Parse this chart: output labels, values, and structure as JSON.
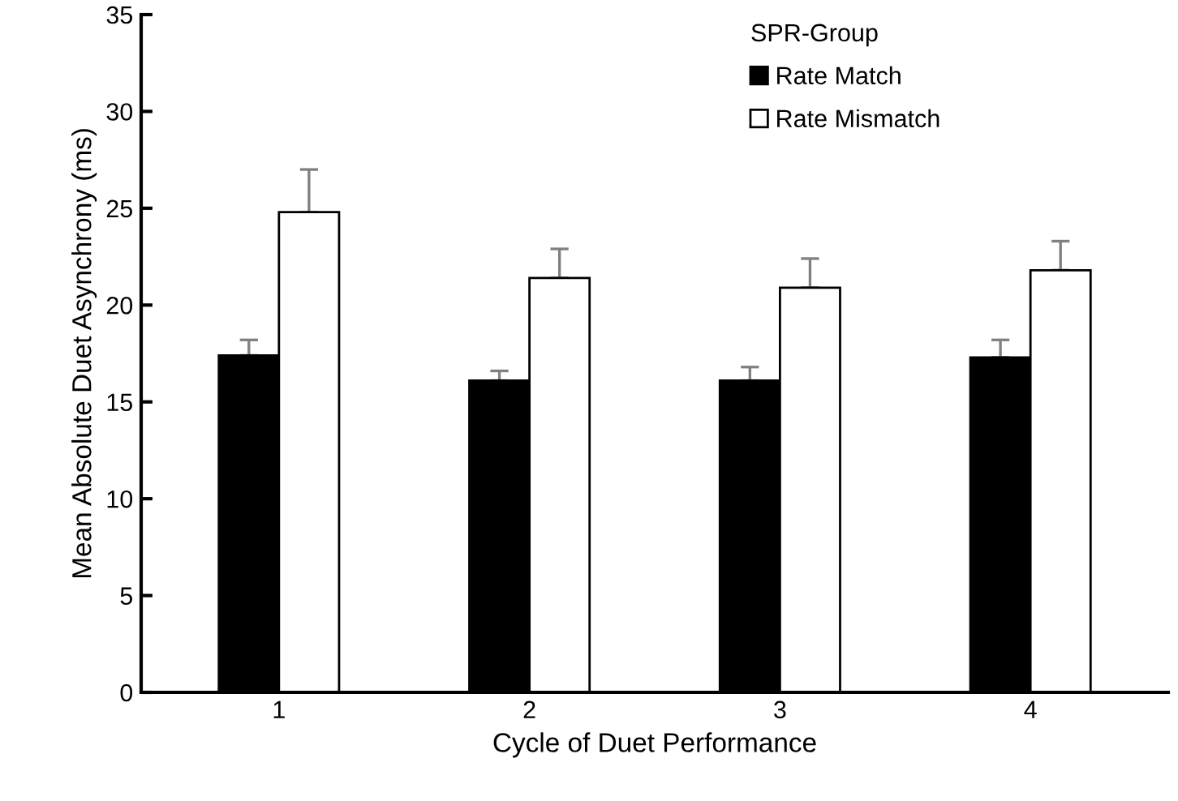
{
  "chart_data": {
    "type": "bar",
    "xlabel": "Cycle of Duet Performance",
    "ylabel": "Mean Absolute Duet Asynchrony (ms)",
    "legend_title": "SPR-Group",
    "legend": "top right",
    "grid": false,
    "categories": [
      "1",
      "2",
      "3",
      "4"
    ],
    "series": [
      {
        "name": "Rate Match",
        "color": "#000000",
        "values": [
          17.4,
          16.1,
          16.1,
          17.3
        ],
        "errors": [
          [
            17.4,
            18.2
          ],
          [
            16.1,
            16.6
          ],
          [
            16.1,
            16.8
          ],
          [
            17.3,
            18.2
          ]
        ]
      },
      {
        "name": "Rate Mismatch",
        "color": "#ffffff",
        "values": [
          24.8,
          21.4,
          20.9,
          21.8
        ],
        "errors": [
          [
            24.8,
            27.0
          ],
          [
            21.4,
            22.9
          ],
          [
            20.9,
            22.4
          ],
          [
            21.8,
            23.3
          ]
        ]
      }
    ],
    "ylim": [
      0,
      35
    ],
    "yticks": [
      0,
      5,
      10,
      15,
      20,
      25,
      30,
      35
    ]
  }
}
